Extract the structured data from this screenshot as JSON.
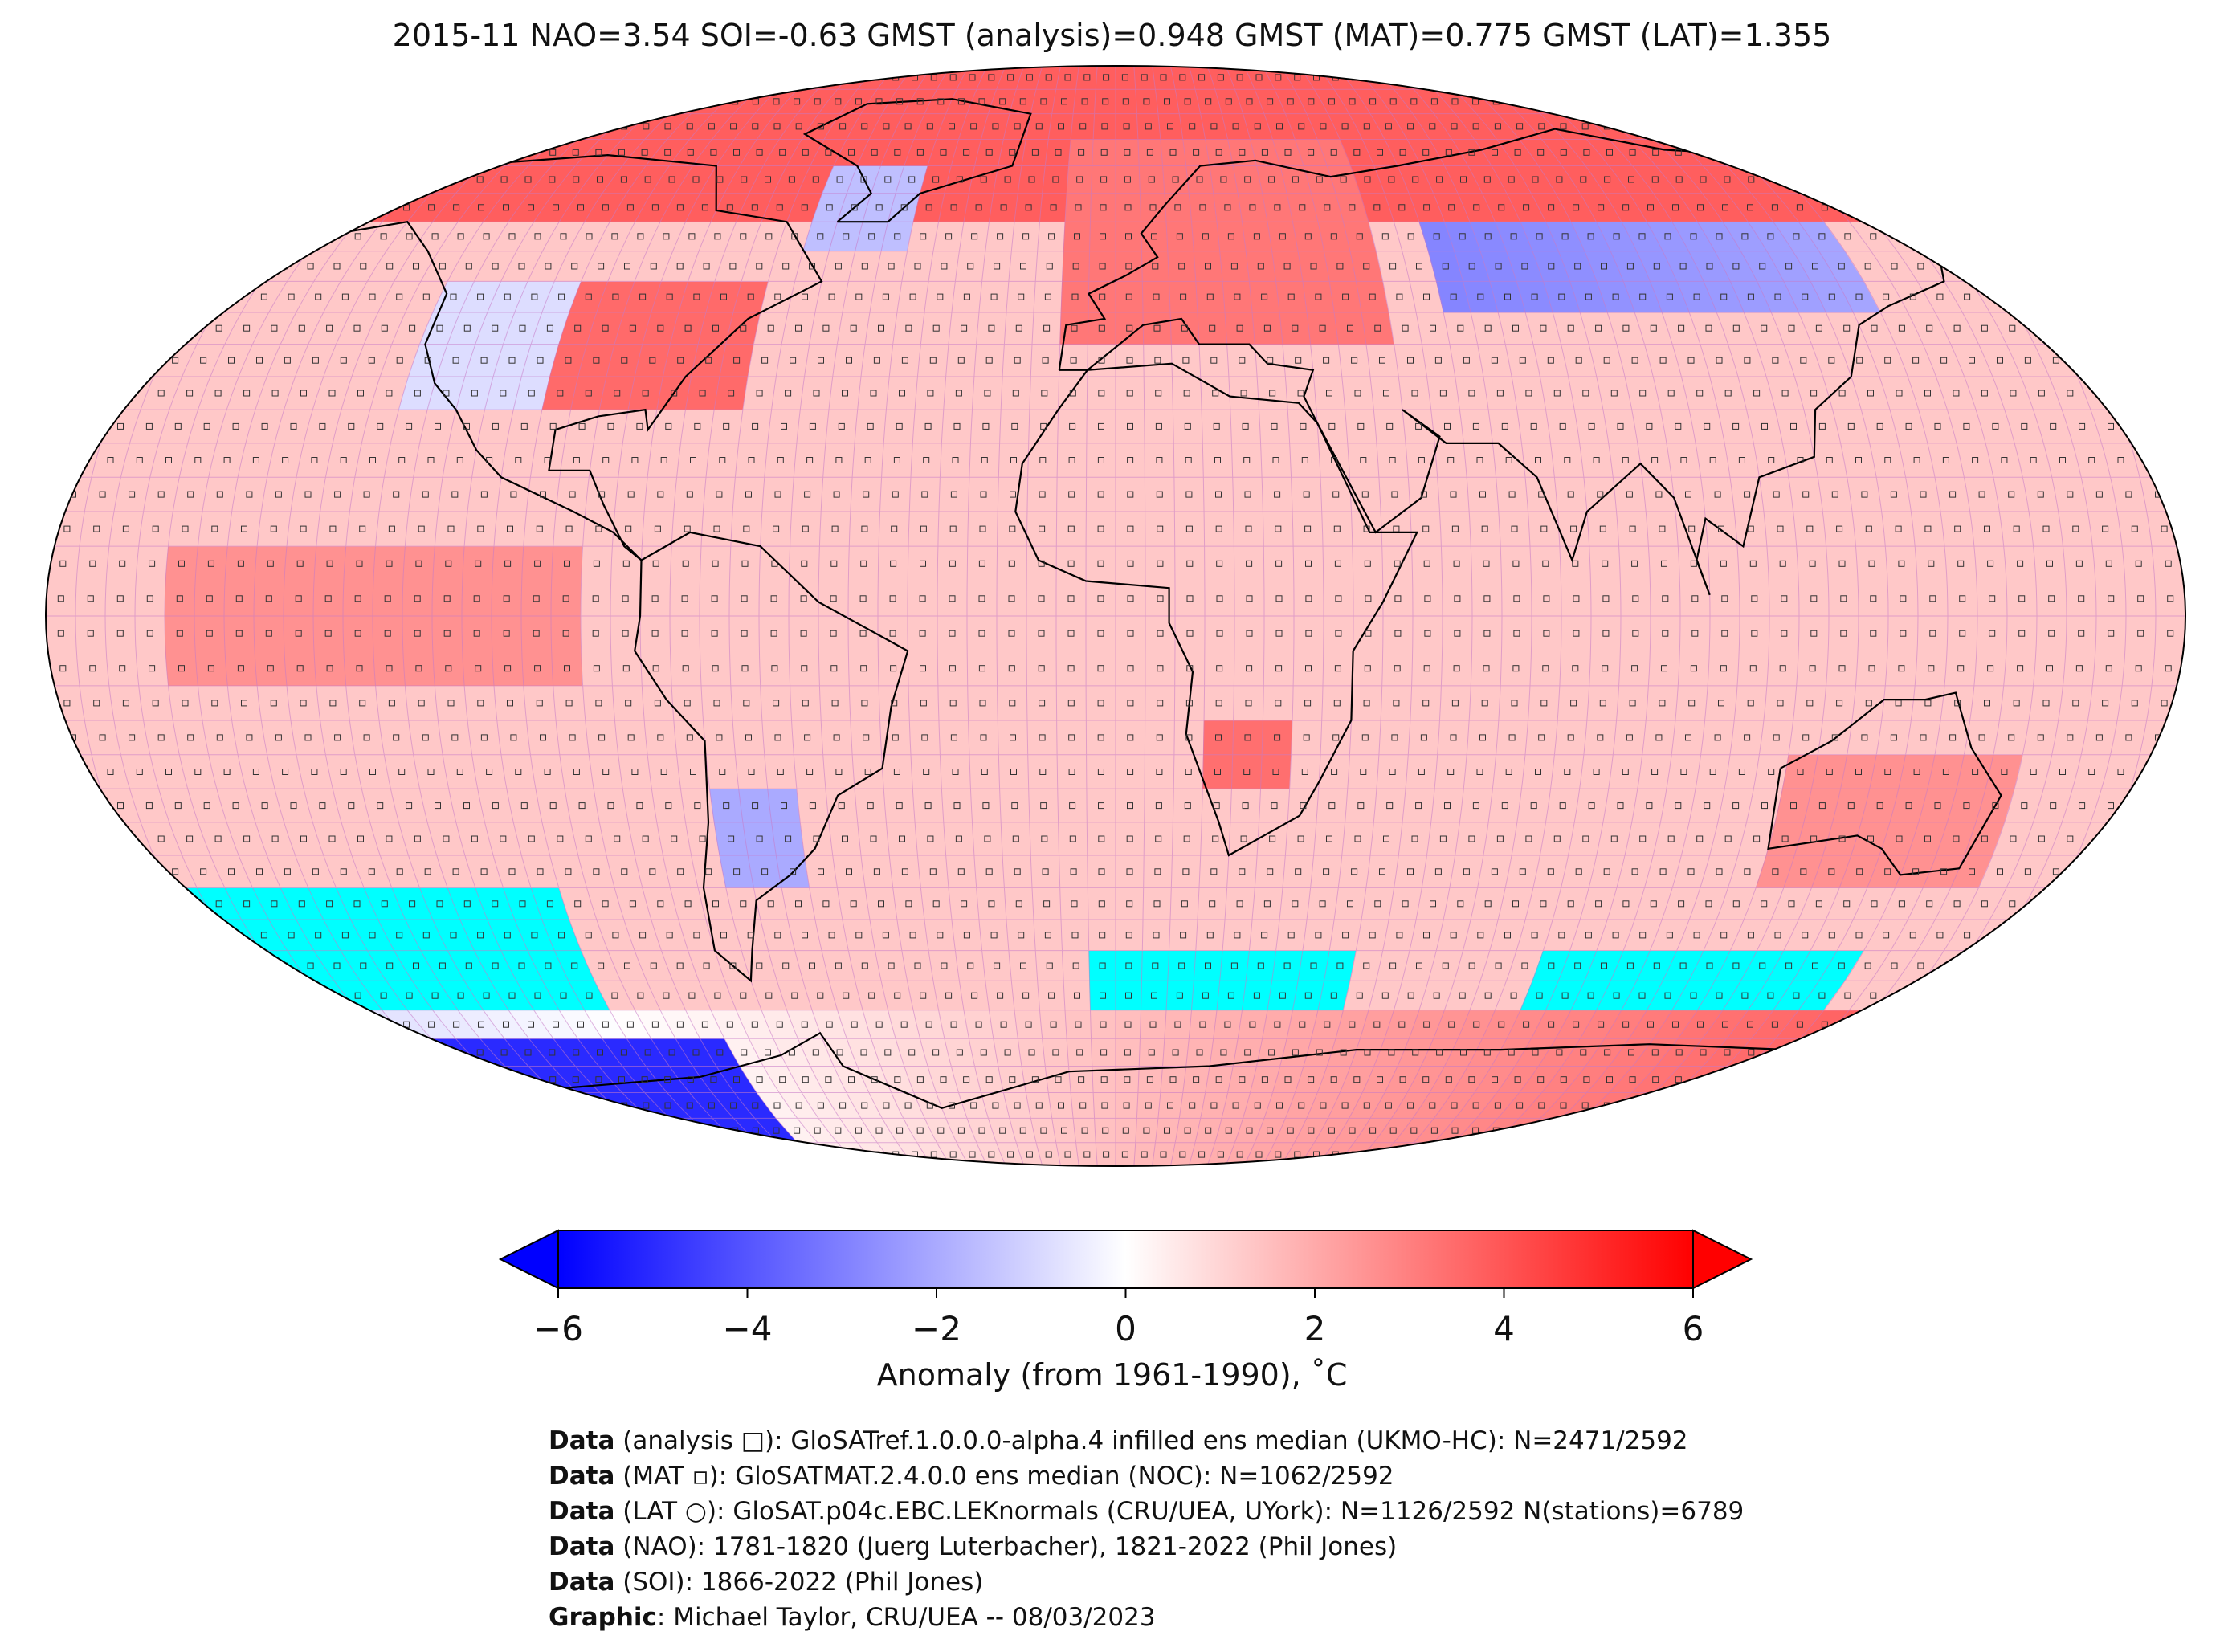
{
  "title": "2015-11 NAO=3.54 SOI=-0.63 GMST (analysis)=0.948 GMST (MAT)=0.775 GMST (LAT)=1.355",
  "colorbar": {
    "label": "Anomaly (from 1961-1990), ˚C",
    "ticks": [
      "−6",
      "−4",
      "−2",
      "0",
      "2",
      "4",
      "6"
    ],
    "tick_values": [
      -6,
      -4,
      -2,
      0,
      2,
      4,
      6
    ],
    "colors": {
      "low": "#0000ff",
      "mid": "#ffffff",
      "high": "#ff0000",
      "missing": "#00ffff"
    }
  },
  "credits": [
    {
      "bold": "Data",
      "text": " (analysis □): GloSATref.1.0.0.0-alpha.4 infilled ens median (UKMO-HC): N=2471/2592"
    },
    {
      "bold": "Data",
      "text": " (MAT ▫): GloSATMAT.2.4.0.0 ens median (NOC): N=1062/2592"
    },
    {
      "bold": "Data",
      "text": " (LAT ○): GloSAT.p04c.EBC.LEKnormals (CRU/UEA, UYork): N=1126/2592 N(stations)=6789"
    },
    {
      "bold": "Data",
      "text": " (NAO): 1781-1820 (Juerg Luterbacher), 1821-2022 (Phil Jones)"
    },
    {
      "bold": "Data",
      "text": " (SOI): 1866-2022 (Phil Jones)"
    },
    {
      "bold": "Graphic",
      "text": ": Michael Taylor, CRU/UEA -- 08/03/2023"
    }
  ]
}
